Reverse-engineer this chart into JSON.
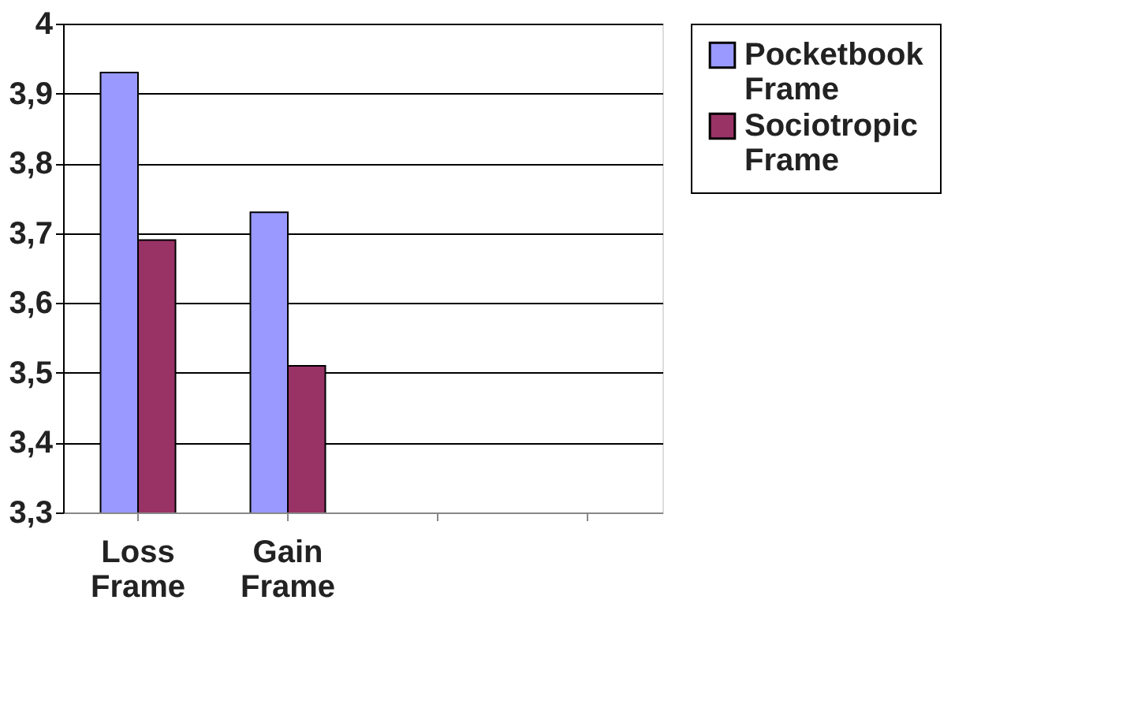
{
  "chart_data": {
    "type": "bar",
    "categories": [
      "Loss Frame",
      "Gain Frame",
      null,
      null
    ],
    "series": [
      {
        "name": "Pocketbook Frame",
        "color": "#9999ff",
        "values": [
          3.93,
          3.73,
          null,
          null
        ]
      },
      {
        "name": "Sociotropic Frame",
        "color": "#993366",
        "values": [
          3.69,
          3.51,
          null,
          null
        ]
      }
    ],
    "ylim": [
      3.3,
      4
    ],
    "yticks": [
      {
        "value": 3.3,
        "label": "3,3"
      },
      {
        "value": 3.4,
        "label": "3,4"
      },
      {
        "value": 3.5,
        "label": "3,5"
      },
      {
        "value": 3.6,
        "label": "3,6"
      },
      {
        "value": 3.7,
        "label": "3,7"
      },
      {
        "value": 3.8,
        "label": "3,8"
      },
      {
        "value": 3.9,
        "label": "3,9"
      },
      4
    ],
    "grid": "y",
    "legend": "right"
  }
}
